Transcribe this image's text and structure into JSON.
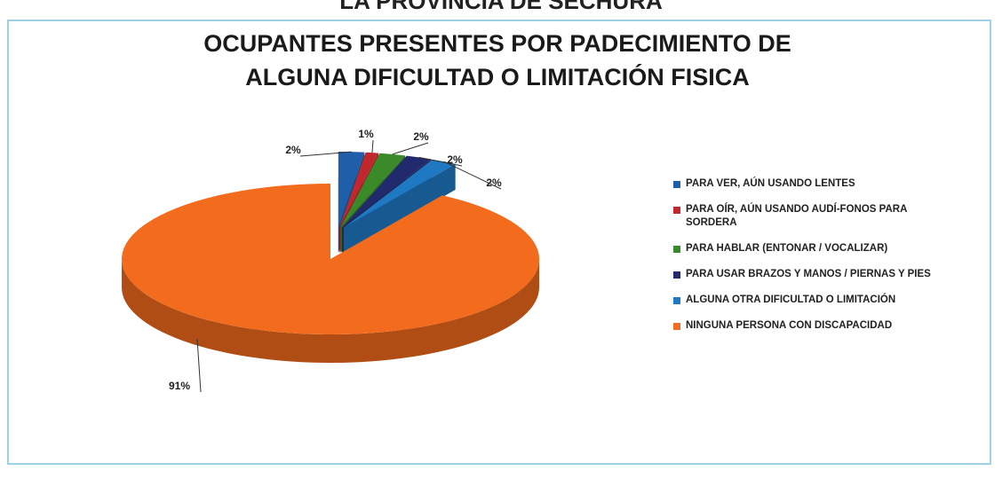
{
  "header": "LA PROVINCIA DE SECHURA",
  "chart_data": {
    "type": "pie",
    "title": "OCUPANTES PRESENTES POR PADECIMIENTO DE ALGUNA DIFICULTAD O LIMITACIÓN FISICA",
    "categories": [
      "PARA VER, AÚN USANDO LENTES",
      "PARA OÍR, AÚN USANDO AUDÍ-FONOS PARA SORDERA",
      "PARA HABLAR (ENTONAR / VOCALIZAR)",
      "PARA USAR BRAZOS Y MANOS / PIERNAS Y PIES",
      "ALGUNA OTRA DIFICULTAD O LIMITACIÓN",
      "NINGUNA PERSONA CON DISCAPACIDAD"
    ],
    "values": [
      2,
      1,
      2,
      2,
      2,
      91
    ],
    "value_labels": [
      "2%",
      "1%",
      "2%",
      "2%",
      "2%",
      "91%"
    ],
    "colors": [
      "#1f5ea8",
      "#c0282d",
      "#3a8a2a",
      "#222a6e",
      "#1e78c2",
      "#f36b1c"
    ],
    "legend": "right"
  }
}
